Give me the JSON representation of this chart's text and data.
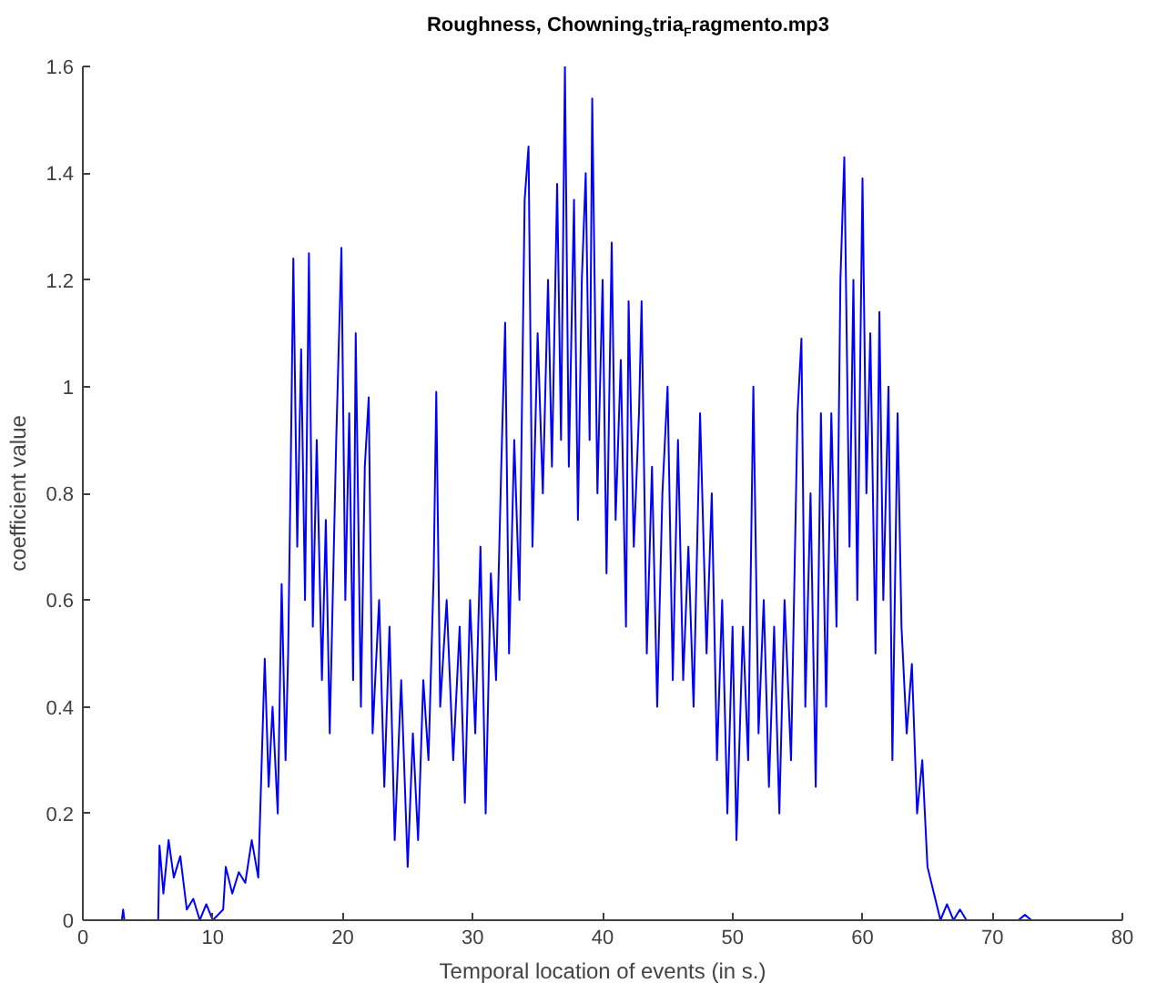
{
  "chart_data": {
    "type": "line",
    "title": "Roughness, Chowning$_{S}$tria$_{F}$ragmento.mp3",
    "xlabel": "Temporal location of events (in s.)",
    "ylabel": "coefficient value",
    "xlim": [
      0,
      80
    ],
    "ylim": [
      0,
      1.6
    ],
    "xticks": [
      0,
      10,
      20,
      30,
      40,
      50,
      60,
      70,
      80
    ],
    "yticks": [
      0,
      0.2,
      0.4,
      0.6,
      0.8,
      1,
      1.2,
      1.4,
      1.6
    ],
    "grid": false,
    "marker": "none",
    "line_style": "solid",
    "series": [
      {
        "color": "#0000ff",
        "x": [
          0,
          3,
          3.1,
          3.2,
          5.8,
          5.9,
          6.2,
          6.6,
          7,
          7.5,
          8,
          8.5,
          9,
          9.5,
          10,
          10.8,
          11,
          11.5,
          12,
          12.5,
          13,
          13.5,
          14,
          14.3,
          14.6,
          15,
          15.3,
          15.6,
          15.8,
          16,
          16.2,
          16.5,
          16.8,
          17.1,
          17.4,
          17.7,
          18,
          18.4,
          18.7,
          19,
          19.5,
          19.9,
          20.2,
          20.5,
          20.8,
          21,
          21.4,
          21.7,
          22,
          22.3,
          22.8,
          23.2,
          23.6,
          24,
          24.5,
          25,
          25.4,
          25.8,
          26.2,
          26.6,
          27,
          27.2,
          27.5,
          28,
          28.5,
          29,
          29.4,
          29.8,
          30.2,
          30.6,
          31,
          31.4,
          31.8,
          32.2,
          32.5,
          32.8,
          33.2,
          33.6,
          34,
          34.3,
          34.6,
          35,
          35.4,
          35.8,
          36.1,
          36.5,
          36.8,
          37.1,
          37.4,
          37.8,
          38.1,
          38.4,
          38.7,
          39,
          39.2,
          39.6,
          40,
          40.3,
          40.7,
          41,
          41.4,
          41.8,
          42,
          42.4,
          42.8,
          43,
          43.4,
          43.8,
          44.2,
          44.6,
          45,
          45.4,
          45.8,
          46.2,
          46.6,
          47,
          47.5,
          48,
          48.4,
          48.8,
          49.2,
          49.6,
          50,
          50.3,
          50.8,
          51.2,
          51.6,
          52,
          52.4,
          52.8,
          53.2,
          53.6,
          54,
          54.5,
          55,
          55.3,
          55.6,
          56,
          56.4,
          56.8,
          57.2,
          57.6,
          58,
          58.3,
          58.6,
          59,
          59.3,
          59.6,
          60,
          60.3,
          60.6,
          61,
          61.3,
          61.6,
          62,
          62.3,
          62.7,
          63,
          63.4,
          63.8,
          64.2,
          64.6,
          65,
          65.5,
          66,
          66.5,
          67,
          67.5,
          68,
          72,
          72.5,
          73
        ],
        "values": [
          0,
          0,
          0.02,
          0,
          0,
          0.14,
          0.05,
          0.15,
          0.08,
          0.12,
          0.02,
          0.04,
          0,
          0.03,
          0,
          0.02,
          0.1,
          0.05,
          0.09,
          0.07,
          0.15,
          0.08,
          0.49,
          0.25,
          0.4,
          0.2,
          0.63,
          0.3,
          0.5,
          0.85,
          1.24,
          0.7,
          1.07,
          0.6,
          1.25,
          0.55,
          0.9,
          0.45,
          0.75,
          0.35,
          0.9,
          1.26,
          0.6,
          0.95,
          0.45,
          1.1,
          0.4,
          0.85,
          0.98,
          0.35,
          0.6,
          0.25,
          0.55,
          0.15,
          0.45,
          0.1,
          0.35,
          0.15,
          0.45,
          0.3,
          0.65,
          0.99,
          0.4,
          0.6,
          0.3,
          0.55,
          0.22,
          0.6,
          0.35,
          0.7,
          0.2,
          0.65,
          0.45,
          0.85,
          1.12,
          0.5,
          0.9,
          0.6,
          1.35,
          1.45,
          0.7,
          1.1,
          0.8,
          1.2,
          0.85,
          1.38,
          0.9,
          1.6,
          0.85,
          1.35,
          0.75,
          1.2,
          1.4,
          0.9,
          1.54,
          0.8,
          1.2,
          0.65,
          1.27,
          0.75,
          1.05,
          0.55,
          1.16,
          0.7,
          0.95,
          1.16,
          0.5,
          0.85,
          0.4,
          0.8,
          1.0,
          0.45,
          0.9,
          0.45,
          0.7,
          0.4,
          0.95,
          0.5,
          0.8,
          0.3,
          0.6,
          0.2,
          0.55,
          0.15,
          0.55,
          0.3,
          1.0,
          0.35,
          0.6,
          0.25,
          0.55,
          0.2,
          0.6,
          0.3,
          0.95,
          1.09,
          0.4,
          0.8,
          0.25,
          0.95,
          0.4,
          0.95,
          0.55,
          1.2,
          1.43,
          0.7,
          1.2,
          0.6,
          1.39,
          0.8,
          1.1,
          0.5,
          1.14,
          0.6,
          1.0,
          0.3,
          0.95,
          0.55,
          0.35,
          0.48,
          0.2,
          0.3,
          0.1,
          0.05,
          0,
          0.03,
          0,
          0.02,
          0,
          0,
          0.01,
          0
        ]
      }
    ]
  }
}
